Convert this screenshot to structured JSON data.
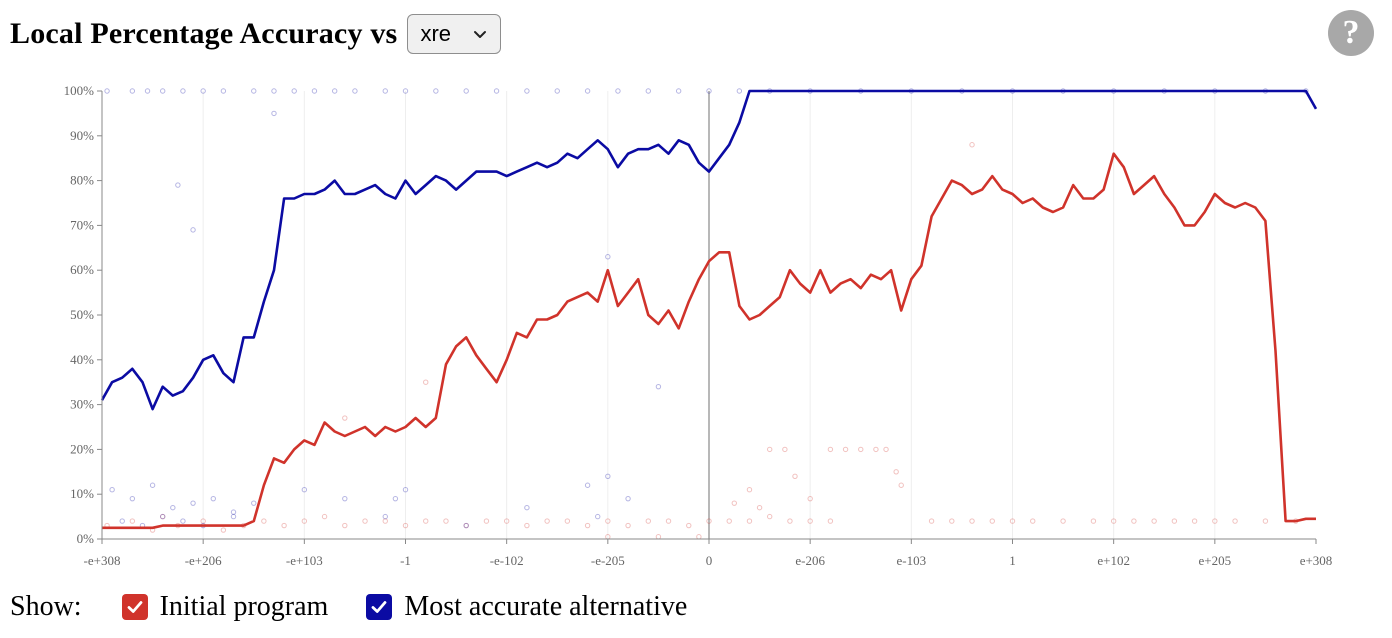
{
  "header": {
    "title": "Local Percentage Accuracy vs",
    "select_value": "xre"
  },
  "help_label": "?",
  "icons": {
    "select_chevron": "chevron-down-icon",
    "checkbox": "checkmark-icon",
    "help": "question-mark-icon"
  },
  "colors": {
    "initial": "#d0332b",
    "alternative": "#0b0ba3",
    "axis": "#888888",
    "grid": "#eeeeee",
    "help_bg": "#a8a8a8"
  },
  "legend": {
    "show_label": "Show:",
    "items": [
      {
        "label": "Initial program",
        "checked": true,
        "color": "#d0332b"
      },
      {
        "label": "Most accurate alternative",
        "checked": true,
        "color": "#0b0ba3"
      }
    ]
  },
  "chart_data": {
    "type": "line",
    "title": "Local Percentage Accuracy vs",
    "xlabel": "xre",
    "ylabel": "",
    "ylim": [
      0,
      100
    ],
    "yticks": [
      "0%",
      "10%",
      "20%",
      "30%",
      "40%",
      "50%",
      "60%",
      "70%",
      "80%",
      "90%",
      "100%"
    ],
    "xticks": [
      "-e+308",
      "-e+206",
      "-e+103",
      "-1",
      "-e-102",
      "-e-205",
      "0",
      "e-206",
      "e-103",
      "1",
      "e+102",
      "e+205",
      "e+308"
    ],
    "xlim": [
      0,
      12
    ],
    "grid": "vertical",
    "x": [
      0,
      0.1,
      0.2,
      0.3,
      0.4,
      0.5,
      0.6,
      0.7,
      0.8,
      0.9,
      1.0,
      1.1,
      1.2,
      1.3,
      1.4,
      1.5,
      1.6,
      1.7,
      1.8,
      1.9,
      2.0,
      2.1,
      2.2,
      2.3,
      2.4,
      2.5,
      2.6,
      2.7,
      2.8,
      2.9,
      3.0,
      3.1,
      3.2,
      3.3,
      3.4,
      3.5,
      3.6,
      3.7,
      3.8,
      3.9,
      4.0,
      4.1,
      4.2,
      4.3,
      4.4,
      4.5,
      4.6,
      4.7,
      4.8,
      4.9,
      5.0,
      5.1,
      5.2,
      5.3,
      5.4,
      5.5,
      5.6,
      5.7,
      5.8,
      5.9,
      6.0,
      6.1,
      6.2,
      6.3,
      6.4,
      6.5,
      6.6,
      6.7,
      6.8,
      6.9,
      7.0,
      7.1,
      7.2,
      7.3,
      7.4,
      7.5,
      7.6,
      7.7,
      7.8,
      7.9,
      8.0,
      8.1,
      8.2,
      8.3,
      8.4,
      8.5,
      8.6,
      8.7,
      8.8,
      8.9,
      9.0,
      9.1,
      9.2,
      9.3,
      9.4,
      9.5,
      9.6,
      9.7,
      9.8,
      9.9,
      10.0,
      10.1,
      10.2,
      10.3,
      10.4,
      10.5,
      10.6,
      10.7,
      10.8,
      10.9,
      11.0,
      11.1,
      11.2,
      11.3,
      11.4,
      11.5,
      11.6,
      11.7,
      11.8,
      11.9,
      12.0
    ],
    "series": [
      {
        "name": "Initial program",
        "color": "#d0332b",
        "values": [
          2.5,
          2.5,
          2.5,
          2.5,
          2.5,
          2.5,
          3,
          3,
          3,
          3,
          3,
          3,
          3,
          3,
          3,
          4,
          12,
          18,
          17,
          20,
          22,
          21,
          26,
          24,
          23,
          24,
          25,
          23,
          25,
          24,
          25,
          27,
          25,
          27,
          39,
          43,
          45,
          41,
          38,
          35,
          40,
          46,
          45,
          49,
          49,
          50,
          53,
          54,
          55,
          53,
          60,
          52,
          55,
          58,
          50,
          48,
          51,
          47,
          53,
          58,
          62,
          64,
          64,
          52,
          49,
          50,
          52,
          54,
          60,
          57,
          55,
          60,
          55,
          57,
          58,
          56,
          59,
          58,
          60,
          51,
          58,
          61,
          72,
          76,
          80,
          79,
          77,
          78,
          81,
          78,
          77,
          75,
          76,
          74,
          73,
          74,
          79,
          76,
          76,
          78,
          86,
          83,
          77,
          79,
          81,
          77,
          74,
          70,
          70,
          73,
          77,
          75,
          74,
          75,
          74,
          71,
          42,
          4,
          4,
          4.5,
          4.5
        ]
      },
      {
        "name": "Most accurate alternative",
        "color": "#0b0ba3",
        "values": [
          31,
          35,
          36,
          38,
          35,
          29,
          34,
          32,
          33,
          36,
          40,
          41,
          37,
          35,
          45,
          45,
          53,
          60,
          76,
          76,
          77,
          77,
          78,
          80,
          77,
          77,
          78,
          79,
          77,
          76,
          80,
          77,
          79,
          81,
          80,
          78,
          80,
          82,
          82,
          82,
          81,
          82,
          83,
          84,
          83,
          84,
          86,
          85,
          87,
          89,
          87,
          83,
          86,
          87,
          87,
          88,
          86,
          89,
          88,
          84,
          82,
          85,
          88,
          93,
          100,
          100,
          100,
          100,
          100,
          100,
          100,
          100,
          100,
          100,
          100,
          100,
          100,
          100,
          100,
          100,
          100,
          100,
          100,
          100,
          100,
          100,
          100,
          100,
          100,
          100,
          100,
          100,
          100,
          100,
          100,
          100,
          100,
          100,
          100,
          100,
          100,
          100,
          100,
          100,
          100,
          100,
          100,
          100,
          100,
          100,
          100,
          100,
          100,
          100,
          100,
          100,
          100,
          100,
          100,
          100,
          96
        ]
      }
    ],
    "points": {
      "initial": [
        [
          0.05,
          3
        ],
        [
          0.3,
          4
        ],
        [
          0.5,
          2
        ],
        [
          0.6,
          5
        ],
        [
          0.75,
          3
        ],
        [
          1.0,
          4
        ],
        [
          1.2,
          2
        ],
        [
          1.4,
          3
        ],
        [
          1.6,
          4
        ],
        [
          1.8,
          3
        ],
        [
          2.0,
          4
        ],
        [
          2.2,
          5
        ],
        [
          2.4,
          3
        ],
        [
          2.6,
          4
        ],
        [
          2.8,
          4
        ],
        [
          3.0,
          3
        ],
        [
          3.2,
          4
        ],
        [
          3.4,
          4
        ],
        [
          3.6,
          3
        ],
        [
          3.8,
          4
        ],
        [
          4.0,
          4
        ],
        [
          4.2,
          3
        ],
        [
          4.4,
          4
        ],
        [
          4.6,
          4
        ],
        [
          4.8,
          3
        ],
        [
          5.0,
          4
        ],
        [
          5.2,
          3
        ],
        [
          5.4,
          4
        ],
        [
          5.6,
          4
        ],
        [
          5.8,
          3
        ],
        [
          6.0,
          4
        ],
        [
          6.2,
          4
        ],
        [
          6.4,
          4
        ],
        [
          6.6,
          5
        ],
        [
          6.8,
          4
        ],
        [
          7.0,
          4
        ],
        [
          7.2,
          4
        ],
        [
          6.25,
          8
        ],
        [
          6.4,
          11
        ],
        [
          6.5,
          7
        ],
        [
          6.6,
          20
        ],
        [
          6.75,
          20
        ],
        [
          6.85,
          14
        ],
        [
          7.0,
          9
        ],
        [
          7.2,
          20
        ],
        [
          7.35,
          20
        ],
        [
          7.5,
          20
        ],
        [
          7.65,
          20
        ],
        [
          7.75,
          20
        ],
        [
          7.85,
          15
        ],
        [
          7.9,
          12
        ],
        [
          8.2,
          4
        ],
        [
          8.4,
          4
        ],
        [
          8.6,
          4
        ],
        [
          8.8,
          4
        ],
        [
          9.0,
          4
        ],
        [
          9.2,
          4
        ],
        [
          9.5,
          4
        ],
        [
          9.8,
          4
        ],
        [
          10.0,
          4
        ],
        [
          10.2,
          4
        ],
        [
          10.4,
          4
        ],
        [
          10.6,
          4
        ],
        [
          10.8,
          4
        ],
        [
          11.0,
          4
        ],
        [
          11.2,
          4
        ],
        [
          11.5,
          4
        ],
        [
          11.8,
          4
        ],
        [
          8.6,
          88
        ],
        [
          2.4,
          27
        ],
        [
          3.2,
          35
        ],
        [
          5.0,
          0.5
        ],
        [
          5.5,
          0.5
        ],
        [
          5.9,
          0.5
        ]
      ],
      "alternative": [
        [
          0.05,
          100
        ],
        [
          0.3,
          100
        ],
        [
          0.45,
          100
        ],
        [
          0.6,
          100
        ],
        [
          0.8,
          100
        ],
        [
          1.0,
          100
        ],
        [
          1.2,
          100
        ],
        [
          1.5,
          100
        ],
        [
          1.7,
          100
        ],
        [
          1.9,
          100
        ],
        [
          2.1,
          100
        ],
        [
          2.3,
          100
        ],
        [
          2.5,
          100
        ],
        [
          2.8,
          100
        ],
        [
          3.0,
          100
        ],
        [
          3.3,
          100
        ],
        [
          3.6,
          100
        ],
        [
          3.9,
          100
        ],
        [
          4.2,
          100
        ],
        [
          4.5,
          100
        ],
        [
          4.8,
          100
        ],
        [
          5.1,
          100
        ],
        [
          5.4,
          100
        ],
        [
          5.7,
          100
        ],
        [
          6.0,
          100
        ],
        [
          6.3,
          100
        ],
        [
          6.6,
          100
        ],
        [
          7.0,
          100
        ],
        [
          7.5,
          100
        ],
        [
          8.0,
          100
        ],
        [
          8.5,
          100
        ],
        [
          9.0,
          100
        ],
        [
          9.5,
          100
        ],
        [
          10.0,
          100
        ],
        [
          10.5,
          100
        ],
        [
          11.0,
          100
        ],
        [
          11.5,
          100
        ],
        [
          11.9,
          100
        ],
        [
          1.7,
          95
        ],
        [
          0.75,
          79
        ],
        [
          0.9,
          69
        ],
        [
          5.0,
          63
        ],
        [
          5.5,
          34
        ],
        [
          0.1,
          11
        ],
        [
          0.3,
          9
        ],
        [
          0.5,
          12
        ],
        [
          0.7,
          7
        ],
        [
          0.9,
          8
        ],
        [
          1.1,
          9
        ],
        [
          1.3,
          6
        ],
        [
          1.5,
          8
        ],
        [
          2.0,
          11
        ],
        [
          2.4,
          9
        ],
        [
          2.9,
          9
        ],
        [
          3.0,
          11
        ],
        [
          4.2,
          7
        ],
        [
          4.8,
          12
        ],
        [
          5.0,
          14
        ],
        [
          5.2,
          9
        ],
        [
          0.2,
          4
        ],
        [
          0.4,
          3
        ],
        [
          0.6,
          5
        ],
        [
          0.8,
          4
        ],
        [
          1.0,
          3
        ],
        [
          1.3,
          5
        ],
        [
          2.8,
          5
        ],
        [
          3.6,
          3
        ],
        [
          4.9,
          5
        ]
      ]
    }
  }
}
